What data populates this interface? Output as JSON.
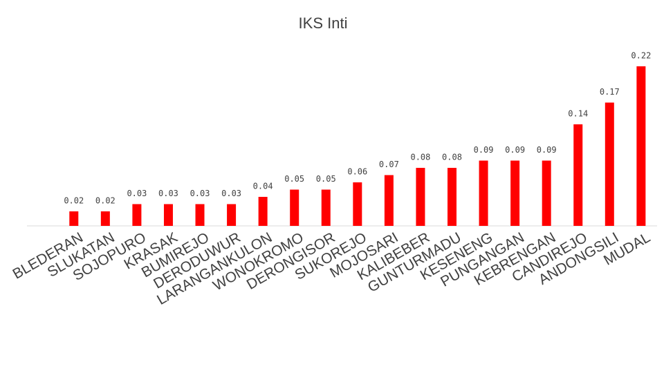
{
  "chart_data": {
    "type": "bar",
    "title": "IKS Inti",
    "categories": [
      "BLEDERAN",
      "SLUKATAN",
      "SOJOPURO",
      "KRASAK",
      "BUMIREJO",
      "DERODUWUR",
      "LARANGANKULON",
      "WONOKROMO",
      "DERONGISOR",
      "SUKOREJO",
      "MOJOSARI",
      "KALIBEBER",
      "GUNTURMADU",
      "KESENENG",
      "PUNGANGAN",
      "KEBRENGAN",
      "CANDIREJO",
      "ANDONGSILI",
      "MUDAL"
    ],
    "values": [
      0.02,
      0.02,
      0.03,
      0.03,
      0.03,
      0.03,
      0.04,
      0.05,
      0.05,
      0.06,
      0.07,
      0.08,
      0.08,
      0.09,
      0.09,
      0.09,
      0.14,
      0.17,
      0.22
    ],
    "color": "#ff0000"
  }
}
